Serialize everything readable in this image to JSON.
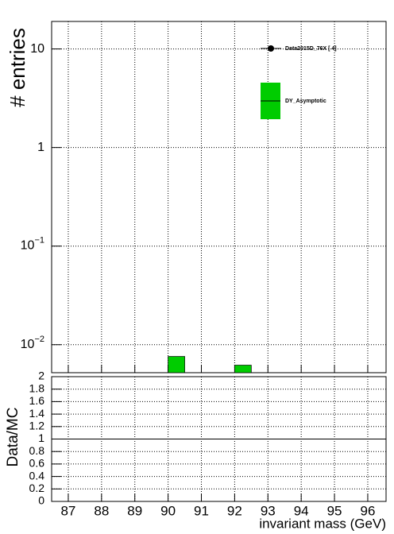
{
  "chart_data": [
    {
      "type": "histogram",
      "y_label": "# entries",
      "log_y": true,
      "grid": true,
      "xlim": [
        86.5,
        96.55
      ],
      "xticks": [
        87,
        88,
        89,
        90,
        91,
        92,
        93,
        94,
        95,
        96
      ],
      "ylim": [
        0.0052,
        19
      ],
      "yticks": [
        {
          "value": 0.01,
          "label": "10",
          "exponent": "−2"
        },
        {
          "value": 0.1,
          "label": "10",
          "exponent": "−1"
        },
        1,
        10
      ],
      "bins": [
        86.5,
        87,
        87.5,
        88,
        88.5,
        89,
        89.5,
        90,
        90.5,
        91,
        91.5,
        92,
        92.5,
        93,
        93.5,
        94,
        94.5,
        95,
        95.5,
        96,
        96.5
      ],
      "series": [
        {
          "name": "DY_Asymptotic",
          "color": "#00cc00",
          "values": [
            null,
            null,
            null,
            null,
            null,
            null,
            null,
            0.0076,
            null,
            null,
            null,
            0.0062,
            null,
            null,
            null,
            null,
            null,
            null,
            null,
            null
          ]
        }
      ],
      "legend": [
        {
          "name": "Data2015D_76X [       4]",
          "marker": "point"
        },
        {
          "name": "DY_Asymptotic",
          "marker": "box"
        }
      ]
    },
    {
      "type": "ratio",
      "y_label": "Data/MC",
      "x_label": "invariant mass (GeV)",
      "grid": true,
      "xlim": [
        86.5,
        96.55
      ],
      "xticks": [
        87,
        88,
        89,
        90,
        91,
        92,
        93,
        94,
        95,
        96
      ],
      "ylim": [
        0,
        2
      ],
      "yticks": [
        0,
        0.2,
        0.4,
        0.6,
        0.8,
        1,
        1.2,
        1.4,
        1.6,
        1.8,
        2
      ],
      "reference_line": 1
    }
  ]
}
